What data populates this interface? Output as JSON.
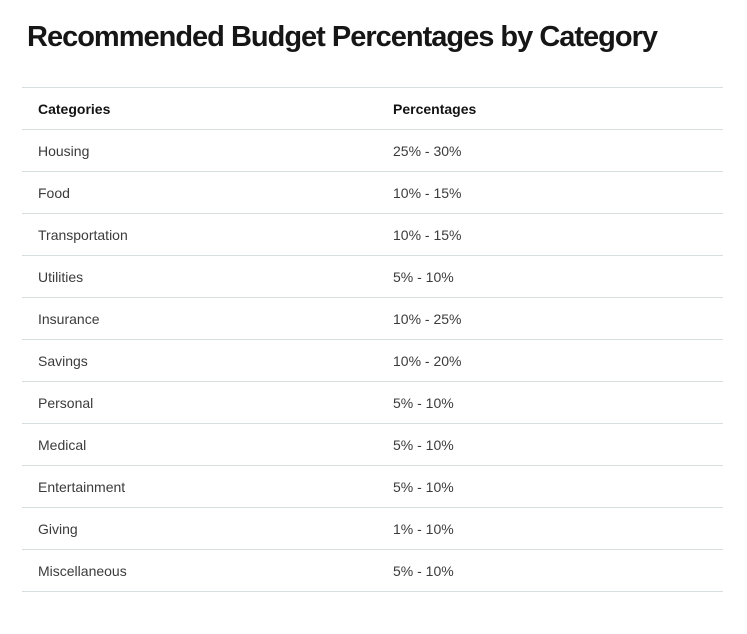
{
  "page": {
    "title": "Recommended Budget Percentages by Category"
  },
  "table": {
    "columns": [
      "Categories",
      "Percentages"
    ],
    "rows": [
      {
        "category": "Housing",
        "percentage": "25% - 30%"
      },
      {
        "category": "Food",
        "percentage": "10% - 15%"
      },
      {
        "category": "Transportation",
        "percentage": "10% - 15%"
      },
      {
        "category": "Utilities",
        "percentage": "5% - 10%"
      },
      {
        "category": "Insurance",
        "percentage": "10% - 25%"
      },
      {
        "category": "Savings",
        "percentage": "10% - 20%"
      },
      {
        "category": "Personal",
        "percentage": "5% - 10%"
      },
      {
        "category": "Medical",
        "percentage": "5% - 10%"
      },
      {
        "category": "Entertainment",
        "percentage": "5% - 10%"
      },
      {
        "category": "Giving",
        "percentage": "1% - 10%"
      },
      {
        "category": "Miscellaneous",
        "percentage": "5% - 10%"
      }
    ]
  },
  "chart_data": {
    "type": "table",
    "title": "Recommended Budget Percentages by Category",
    "columns": [
      "Categories",
      "Percentages"
    ],
    "rows": [
      [
        "Housing",
        "25% - 30%"
      ],
      [
        "Food",
        "10% - 15%"
      ],
      [
        "Transportation",
        "10% - 15%"
      ],
      [
        "Utilities",
        "5% - 10%"
      ],
      [
        "Insurance",
        "10% - 25%"
      ],
      [
        "Savings",
        "10% - 20%"
      ],
      [
        "Personal",
        "5% - 10%"
      ],
      [
        "Medical",
        "5% - 10%"
      ],
      [
        "Entertainment",
        "5% - 10%"
      ],
      [
        "Giving",
        "1% - 10%"
      ],
      [
        "Miscellaneous",
        "5% - 10%"
      ]
    ]
  },
  "colors": {
    "background": "#ffffff",
    "title_text": "#161616",
    "header_text": "#131313",
    "cell_text": "#3b3b3b",
    "border": "#d8dee0"
  }
}
